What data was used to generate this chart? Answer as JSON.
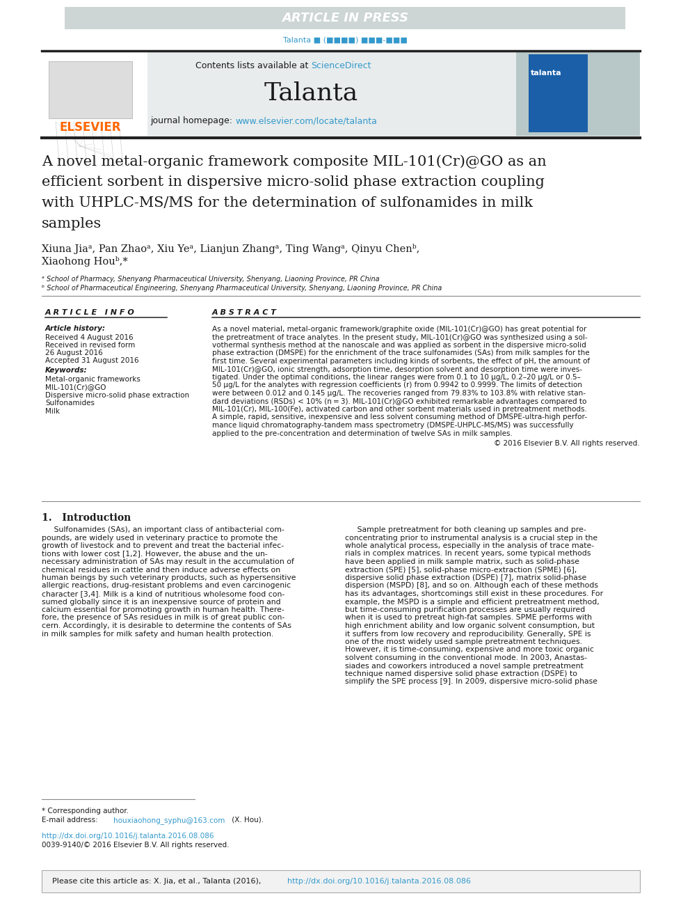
{
  "article_in_press_text": "ARTICLE IN PRESS",
  "article_in_press_bg": "#cdd5d5",
  "talanta_header_text": "Talanta ■ (■■■■) ■■■-■■■",
  "talanta_header_color": "#3399cc",
  "journal_header_bg": "#e8ecec",
  "journal_name": "Talanta",
  "contents_text": "Contents lists available at ",
  "sciencedirect_text": "ScienceDirect",
  "sciencedirect_color": "#3399cc",
  "homepage_text": "journal homepage: ",
  "homepage_url": "www.elsevier.com/locate/talanta",
  "homepage_url_color": "#3399cc",
  "elsevier_color": "#FF6600",
  "elsevier_text": "ELSEVIER",
  "paper_title_line1": "A novel metal-organic framework composite MIL-101(Cr)@GO as an",
  "paper_title_line2": "efficient sorbent in dispersive micro-solid phase extraction coupling",
  "paper_title_line3": "with UHPLC-MS/MS for the determination of sulfonamides in milk",
  "paper_title_line4": "samples",
  "author_line1": "Xiuna Jiaᵃ, Pan Zhaoᵃ, Xiu Yeᵃ, Lianjun Zhangᵃ, Ting Wangᵃ, Qinyu Chenᵇ,",
  "author_line2": "Xiaohong Houᵇ,*",
  "affiliation_a": "ᵃ School of Pharmacy, Shenyang Pharmaceutical University, Shenyang, Liaoning Province, PR China",
  "affiliation_b": "ᵇ School of Pharmaceutical Engineering, Shenyang Pharmaceutical University, Shenyang, Liaoning Province, PR China",
  "article_info_title": "A R T I C L E   I N F O",
  "article_history_title": "Article history:",
  "received": "Received 4 August 2016",
  "received_revised": "Received in revised form",
  "received_revised2": "26 August 2016",
  "accepted": "Accepted 31 August 2016",
  "keywords_title": "Keywords:",
  "keywords": [
    "Metal-organic frameworks",
    "MIL-101(Cr)@GO",
    "Dispersive micro-solid phase extraction",
    "Sulfonamides",
    "Milk"
  ],
  "abstract_title": "A B S T R A C T",
  "abstract_lines": [
    "As a novel material, metal-organic framework/graphite oxide (MIL-101(Cr)@GO) has great potential for",
    "the pretreatment of trace analytes. In the present study, MIL-101(Cr)@GO was synthesized using a sol-",
    "vothermal synthesis method at the nanoscale and was applied as sorbent in the dispersive micro-solid",
    "phase extraction (DMSPE) for the enrichment of the trace sulfonamides (SAs) from milk samples for the",
    "first time. Several experimental parameters including kinds of sorbents, the effect of pH, the amount of",
    "MIL-101(Cr)@GO, ionic strength, adsorption time, desorption solvent and desorption time were inves-",
    "tigated. Under the optimal conditions, the linear ranges were from 0.1 to 10 μg/L, 0.2–20 μg/L or 0.5–",
    "50 μg/L for the analytes with regression coefficients (r) from 0.9942 to 0.9999. The limits of detection",
    "were between 0.012 and 0.145 μg/L. The recoveries ranged from 79.83% to 103.8% with relative stan-",
    "dard deviations (RSDs) < 10% (n = 3). MIL-101(Cr)@GO exhibited remarkable advantages compared to",
    "MIL-101(Cr), MIL-100(Fe), activated carbon and other sorbent materials used in pretreatment methods.",
    "A simple, rapid, sensitive, inexpensive and less solvent consuming method of DMSPE-ultra-high perfor-",
    "mance liquid chromatography-tandem mass spectrometry (DMSPE-UHPLC-MS/MS) was successfully",
    "applied to the pre-concentration and determination of twelve SAs in milk samples."
  ],
  "copyright": "© 2016 Elsevier B.V. All rights reserved.",
  "intro_title": "1.   Introduction",
  "intro_left_lines": [
    "     Sulfonamides (SAs), an important class of antibacterial com-",
    "pounds, are widely used in veterinary practice to promote the",
    "growth of livestock and to prevent and treat the bacterial infec-",
    "tions with lower cost [1,2]. However, the abuse and the un-",
    "necessary administration of SAs may result in the accumulation of",
    "chemical residues in cattle and then induce adverse effects on",
    "human beings by such veterinary products, such as hypersensitive",
    "allergic reactions, drug-resistant problems and even carcinogenic",
    "character [3,4]. Milk is a kind of nutritious wholesome food con-",
    "sumed globally since it is an inexpensive source of protein and",
    "calcium essential for promoting growth in human health. There-",
    "fore, the presence of SAs residues in milk is of great public con-",
    "cern. Accordingly, it is desirable to determine the contents of SAs",
    "in milk samples for milk safety and human health protection."
  ],
  "intro_right_lines": [
    "     Sample pretreatment for both cleaning up samples and pre-",
    "concentrating prior to instrumental analysis is a crucial step in the",
    "whole analytical process, especially in the analysis of trace mate-",
    "rials in complex matrices. In recent years, some typical methods",
    "have been applied in milk sample matrix, such as solid-phase",
    "extraction (SPE) [5], solid-phase micro-extraction (SPME) [6],",
    "dispersive solid phase extraction (DSPE) [7], matrix solid-phase",
    "dispersion (MSPD) [8], and so on. Although each of these methods",
    "has its advantages, shortcomings still exist in these procedures. For",
    "example, the MSPD is a simple and efficient pretreatment method,",
    "but time-consuming purification processes are usually required",
    "when it is used to pretreat high-fat samples. SPME performs with",
    "high enrichment ability and low organic solvent consumption, but",
    "it suffers from low recovery and reproducibility. Generally, SPE is",
    "one of the most widely used sample pretreatment techniques.",
    "However, it is time-consuming, expensive and more toxic organic",
    "solvent consuming in the conventional mode. In 2003, Anastas-",
    "siades and coworkers introduced a novel sample pretreatment",
    "technique named dispersive solid phase extraction (DSPE) to",
    "simplify the SPE process [9]. In 2009, dispersive micro-solid phase"
  ],
  "footnote_star": "* Corresponding author.",
  "footnote_email_pre": "E-mail address: ",
  "footnote_email_link": "houxiaohong_syphu@163.com",
  "footnote_email_post": " (X. Hou).",
  "footnote_email_color": "#3399cc",
  "doi_text": "http://dx.doi.org/10.1016/j.talanta.2016.08.086",
  "doi_color": "#3399cc",
  "issn_text": "0039-9140/© 2016 Elsevier B.V. All rights reserved.",
  "cite_pre": "Please cite this article as: X. Jia, et al., Talanta (2016), ",
  "cite_doi": "http://dx.doi.org/10.1016/j.talanta.2016.08.086",
  "cite_doi_color": "#3399cc",
  "bg_color": "white",
  "text_color": "#1a1a1a",
  "line_color": "#333333",
  "header_line_color": "#222222"
}
